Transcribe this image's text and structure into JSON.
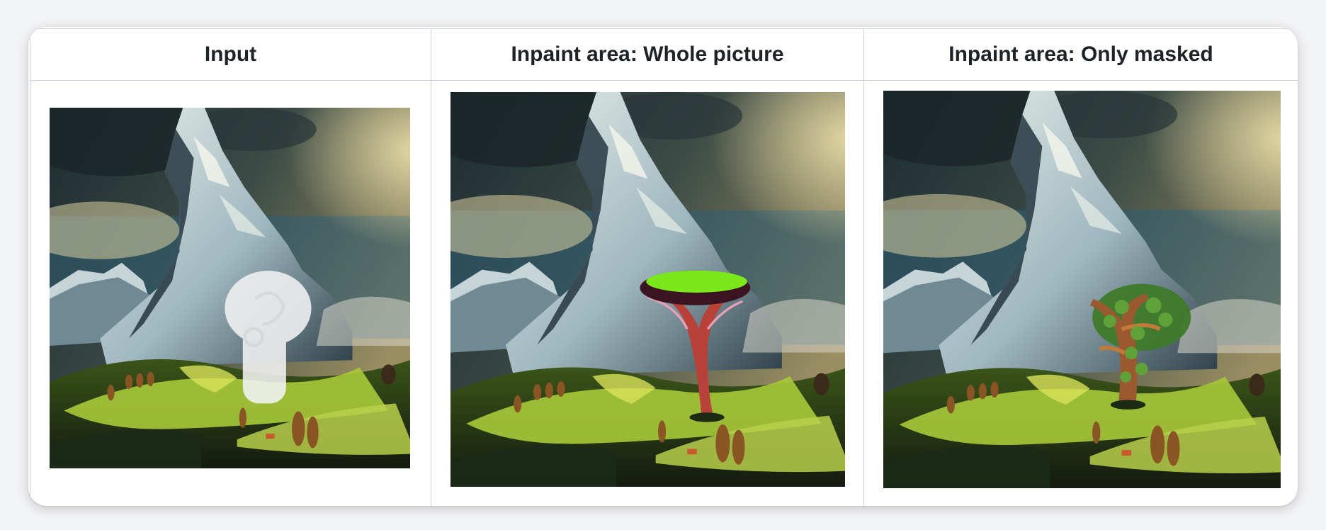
{
  "table": {
    "headers": [
      "Input",
      "Inpaint area: Whole picture",
      "Inpaint area: Only masked"
    ]
  },
  "images": [
    {
      "kind": "mountain-landscape-with-mask"
    },
    {
      "kind": "mountain-landscape-with-tree"
    },
    {
      "kind": "mountain-landscape-with-gnarled-tree"
    }
  ],
  "colors": {
    "border": "#c9d3de",
    "header_text": "#1f2328",
    "sky_dark": "#1c2c30",
    "cloud_light": "#e9dca6",
    "rock": "#9fb7bf",
    "snow": "#e6eee8",
    "meadow": "#a9c93a",
    "meadow_shadow": "#1c2a18",
    "mask": "#f2f2f2",
    "tree_canopy_bright": "#7be81c",
    "tree_trunk_red": "#b8423a",
    "tree_trunk_brown": "#9a5a30"
  }
}
